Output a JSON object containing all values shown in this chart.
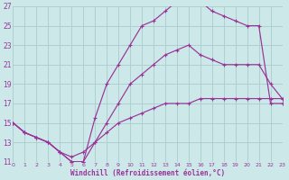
{
  "background_color": "#cce8e8",
  "grid_color": "#aacccc",
  "line_color": "#993399",
  "xlabel": "Windchill (Refroidissement éolien,°C)",
  "xlim": [
    0,
    23
  ],
  "ylim": [
    11,
    27
  ],
  "yticks": [
    11,
    13,
    15,
    17,
    19,
    21,
    23,
    25,
    27
  ],
  "xticks": [
    0,
    1,
    2,
    3,
    4,
    5,
    6,
    7,
    8,
    9,
    10,
    11,
    12,
    13,
    14,
    15,
    16,
    17,
    18,
    19,
    20,
    21,
    22,
    23
  ],
  "curve_top_x": [
    0,
    1,
    2,
    3,
    4,
    5,
    6,
    7,
    8,
    9,
    10,
    11,
    12,
    13,
    14,
    15,
    16,
    17,
    18,
    19,
    20,
    21,
    22,
    23
  ],
  "curve_top_y": [
    15,
    14,
    13.5,
    13,
    12,
    11,
    11,
    15.5,
    19,
    21,
    23,
    25,
    25.5,
    26.5,
    27.5,
    27.5,
    27.5,
    26.5,
    26,
    25.5,
    25,
    25,
    17,
    17
  ],
  "curve_mid_x": [
    0,
    1,
    2,
    3,
    4,
    5,
    6,
    7,
    8,
    9,
    10,
    11,
    12,
    13,
    14,
    15,
    16,
    17,
    18,
    19,
    20,
    21,
    22,
    23
  ],
  "curve_mid_y": [
    15,
    14,
    13.5,
    13,
    12,
    11,
    11,
    13,
    15,
    17,
    19,
    20,
    21,
    22,
    22.5,
    23,
    22,
    21.5,
    21,
    21,
    21,
    21,
    19,
    17.5
  ],
  "curve_bot_x": [
    0,
    1,
    2,
    3,
    4,
    5,
    6,
    7,
    8,
    9,
    10,
    11,
    12,
    13,
    14,
    15,
    16,
    17,
    18,
    19,
    20,
    21,
    22,
    23
  ],
  "curve_bot_y": [
    15,
    14,
    13.5,
    13,
    12,
    11.5,
    12,
    13,
    14,
    15,
    15.5,
    16,
    16.5,
    17,
    17,
    17,
    17.5,
    17.5,
    17.5,
    17.5,
    17.5,
    17.5,
    17.5,
    17.5
  ]
}
